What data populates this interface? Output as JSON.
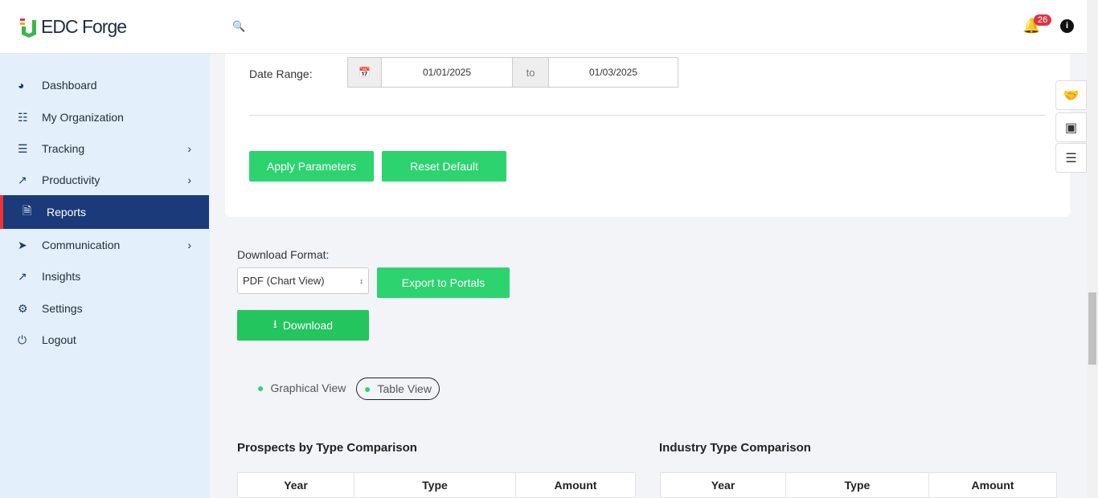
{
  "header": {
    "brand": "EDC Forge",
    "notification_count": "26"
  },
  "sidebar": {
    "items": [
      {
        "label": "Dashboard",
        "icon": "gauge-icon"
      },
      {
        "label": "My Organization",
        "icon": "sitemap-icon"
      },
      {
        "label": "Tracking",
        "icon": "list-icon",
        "has_children": true
      },
      {
        "label": "Productivity",
        "icon": "chart-line-icon",
        "has_children": true
      },
      {
        "label": "Reports",
        "icon": "file-icon",
        "active": true
      },
      {
        "label": "Communication",
        "icon": "paper-plane-icon",
        "has_children": true
      },
      {
        "label": "Insights",
        "icon": "chart-line-icon"
      },
      {
        "label": "Settings",
        "icon": "gear-icon"
      },
      {
        "label": "Logout",
        "icon": "power-icon"
      }
    ]
  },
  "params": {
    "date_range_label": "Date Range:",
    "start": "01/01/2025",
    "to": "to",
    "end": "01/03/2025",
    "apply": "Apply Parameters",
    "reset": "Reset Default"
  },
  "download": {
    "label": "Download Format:",
    "format": "PDF (Chart View)",
    "export": "Export to Portals",
    "download": "Download"
  },
  "views": {
    "graphical": "Graphical View",
    "table": "Table View",
    "selected": "Table View"
  },
  "tables": [
    {
      "title": "Prospects by Type Comparison",
      "columns": [
        "Year",
        "Type",
        "Amount"
      ]
    },
    {
      "title": "Industry Type Comparison",
      "columns": [
        "Year",
        "Type",
        "Amount"
      ]
    }
  ],
  "colors": {
    "accent": "#2dd36f",
    "sidebar_active": "#1b3a7a",
    "badge": "#dc3545"
  }
}
